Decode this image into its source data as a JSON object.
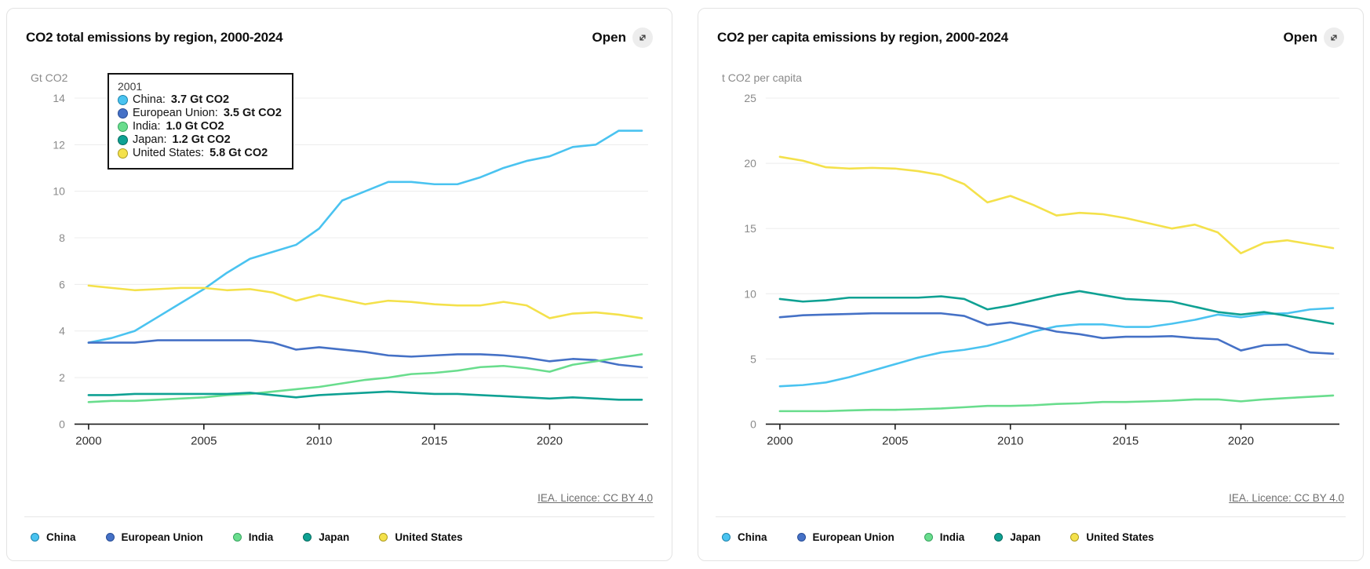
{
  "cards": [
    {
      "title": "CO2 total emissions by region, 2000-2024",
      "open_label": "Open",
      "attribution": "IEA. Licence: CC BY 4.0"
    },
    {
      "title": "CO2 per capita emissions by region, 2000-2024",
      "open_label": "Open",
      "attribution": "IEA. Licence: CC BY 4.0"
    }
  ],
  "tooltip": {
    "year": "2001",
    "unit_suffix": "Gt CO2",
    "rows": [
      {
        "label": "China",
        "value": "3.7 Gt CO2"
      },
      {
        "label": "European Union",
        "value": "3.5 Gt CO2"
      },
      {
        "label": "India",
        "value": "1.0 Gt CO2"
      },
      {
        "label": "Japan",
        "value": "1.2 Gt CO2"
      },
      {
        "label": "United States",
        "value": "5.8 Gt CO2"
      }
    ]
  },
  "chart_data": [
    {
      "type": "line",
      "title": "CO2 total emissions by region, 2000-2024",
      "xlabel": "",
      "ylabel": "Gt CO2",
      "x": [
        2000,
        2001,
        2002,
        2003,
        2004,
        2005,
        2006,
        2007,
        2008,
        2009,
        2010,
        2011,
        2012,
        2013,
        2014,
        2015,
        2016,
        2017,
        2018,
        2019,
        2020,
        2021,
        2022,
        2023,
        2024
      ],
      "xticks": [
        2000,
        2005,
        2010,
        2015,
        2020
      ],
      "ylim": [
        0,
        14
      ],
      "yticks": [
        0,
        2,
        4,
        6,
        8,
        10,
        12,
        14
      ],
      "grid": true,
      "legend_position": "bottom",
      "series": [
        {
          "name": "China",
          "color": "#4AC3F0",
          "dot_border": "#1d84ad",
          "values": [
            3.5,
            3.7,
            4.0,
            4.6,
            5.2,
            5.8,
            6.5,
            7.1,
            7.4,
            7.7,
            8.4,
            9.6,
            10.0,
            10.4,
            10.4,
            10.3,
            10.3,
            10.6,
            11.0,
            11.3,
            11.5,
            11.9,
            12.0,
            12.6,
            12.6
          ]
        },
        {
          "name": "European Union",
          "color": "#4571C6",
          "dot_border": "#274c96",
          "values": [
            3.5,
            3.5,
            3.5,
            3.6,
            3.6,
            3.6,
            3.6,
            3.6,
            3.5,
            3.2,
            3.3,
            3.2,
            3.1,
            2.95,
            2.9,
            2.95,
            3.0,
            3.0,
            2.95,
            2.85,
            2.7,
            2.8,
            2.75,
            2.55,
            2.45
          ]
        },
        {
          "name": "India",
          "color": "#69DD8D",
          "dot_border": "#37a35f",
          "values": [
            0.95,
            1.0,
            1.0,
            1.05,
            1.1,
            1.15,
            1.25,
            1.3,
            1.4,
            1.5,
            1.6,
            1.75,
            1.9,
            2.0,
            2.15,
            2.2,
            2.3,
            2.45,
            2.5,
            2.4,
            2.25,
            2.55,
            2.7,
            2.85,
            3.0
          ]
        },
        {
          "name": "Japan",
          "color": "#0FA193",
          "dot_border": "#066b5e",
          "values": [
            1.25,
            1.25,
            1.3,
            1.3,
            1.3,
            1.3,
            1.3,
            1.35,
            1.25,
            1.15,
            1.25,
            1.3,
            1.35,
            1.4,
            1.35,
            1.3,
            1.3,
            1.25,
            1.2,
            1.15,
            1.1,
            1.15,
            1.1,
            1.05,
            1.05
          ]
        },
        {
          "name": "United States",
          "color": "#F4E14B",
          "dot_border": "#ad9c22",
          "values": [
            5.95,
            5.85,
            5.75,
            5.8,
            5.85,
            5.85,
            5.75,
            5.8,
            5.65,
            5.3,
            5.55,
            5.35,
            5.15,
            5.3,
            5.25,
            5.15,
            5.1,
            5.1,
            5.25,
            5.1,
            4.55,
            4.75,
            4.8,
            4.7,
            4.55
          ]
        }
      ]
    },
    {
      "type": "line",
      "title": "CO2 per capita emissions by region, 2000-2024",
      "xlabel": "",
      "ylabel": "t CO2 per capita",
      "x": [
        2000,
        2001,
        2002,
        2003,
        2004,
        2005,
        2006,
        2007,
        2008,
        2009,
        2010,
        2011,
        2012,
        2013,
        2014,
        2015,
        2016,
        2017,
        2018,
        2019,
        2020,
        2021,
        2022,
        2023,
        2024
      ],
      "xticks": [
        2000,
        2005,
        2010,
        2015,
        2020
      ],
      "ylim": [
        0,
        25
      ],
      "yticks": [
        0,
        5,
        10,
        15,
        20,
        25
      ],
      "grid": true,
      "legend_position": "bottom",
      "series": [
        {
          "name": "China",
          "color": "#4AC3F0",
          "dot_border": "#1d84ad",
          "values": [
            2.9,
            3.0,
            3.2,
            3.6,
            4.1,
            4.6,
            5.1,
            5.5,
            5.7,
            6.0,
            6.5,
            7.1,
            7.5,
            7.65,
            7.65,
            7.45,
            7.45,
            7.7,
            8.0,
            8.4,
            8.2,
            8.45,
            8.5,
            8.8,
            8.9
          ]
        },
        {
          "name": "European Union",
          "color": "#4571C6",
          "dot_border": "#274c96",
          "values": [
            8.2,
            8.35,
            8.4,
            8.45,
            8.5,
            8.5,
            8.5,
            8.5,
            8.3,
            7.6,
            7.8,
            7.5,
            7.1,
            6.9,
            6.6,
            6.7,
            6.7,
            6.75,
            6.6,
            6.5,
            5.65,
            6.05,
            6.1,
            5.5,
            5.4
          ]
        },
        {
          "name": "India",
          "color": "#69DD8D",
          "dot_border": "#37a35f",
          "values": [
            1.0,
            1.0,
            1.0,
            1.05,
            1.1,
            1.1,
            1.15,
            1.2,
            1.3,
            1.4,
            1.4,
            1.45,
            1.55,
            1.6,
            1.7,
            1.7,
            1.75,
            1.8,
            1.9,
            1.9,
            1.75,
            1.9,
            2.0,
            2.1,
            2.2
          ]
        },
        {
          "name": "Japan",
          "color": "#0FA193",
          "dot_border": "#066b5e",
          "values": [
            9.6,
            9.4,
            9.5,
            9.7,
            9.7,
            9.7,
            9.7,
            9.8,
            9.6,
            8.8,
            9.1,
            9.5,
            9.9,
            10.2,
            9.9,
            9.6,
            9.5,
            9.4,
            9.0,
            8.6,
            8.4,
            8.6,
            8.3,
            8.0,
            7.7
          ]
        },
        {
          "name": "United States",
          "color": "#F4E14B",
          "dot_border": "#ad9c22",
          "values": [
            20.5,
            20.2,
            19.7,
            19.6,
            19.65,
            19.6,
            19.4,
            19.1,
            18.4,
            17.0,
            17.5,
            16.8,
            16.0,
            16.2,
            16.1,
            15.8,
            15.4,
            15.0,
            15.3,
            14.7,
            13.1,
            13.9,
            14.1,
            13.8,
            13.5
          ]
        }
      ]
    }
  ]
}
